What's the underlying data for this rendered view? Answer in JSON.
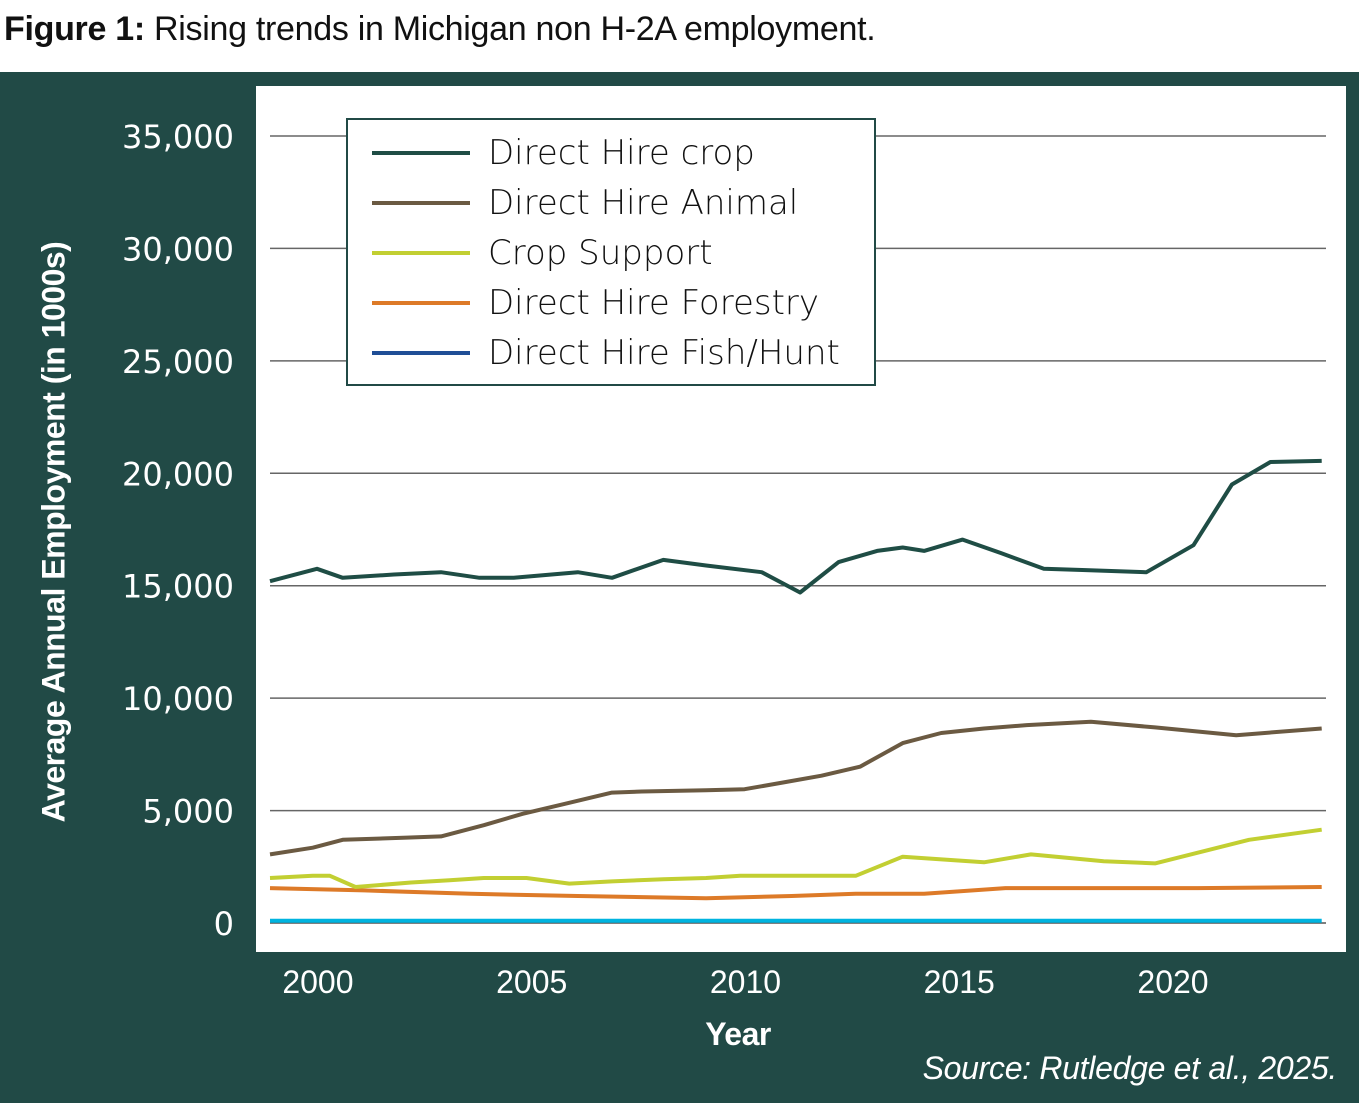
{
  "figure_title_bold": "Figure 1:",
  "figure_title_rest": " Rising trends in Michigan non H-2A employment.",
  "source": "Source: Rutledge et al., 2025.",
  "chart_data": {
    "type": "line",
    "title": "Rising trends in Michigan non H-2A employment.",
    "xlabel": "Year",
    "ylabel": "Average Annual Employment (in 1000s)",
    "xlim": [
      1999.3,
      2024
    ],
    "ylim": [
      0,
      35000
    ],
    "yticks": [
      0,
      5000,
      10000,
      15000,
      20000,
      25000,
      30000,
      35000
    ],
    "ytick_labels": [
      "0",
      "5,000",
      "10,000",
      "15,000",
      "20,000",
      "25,000",
      "30,000",
      "35,000"
    ],
    "xticks": [
      2000,
      2005,
      2010,
      2015,
      2020
    ],
    "xtick_labels": [
      "2000",
      "2005",
      "2010",
      "2015",
      "2020"
    ],
    "grid": "horizontal",
    "legend_position": "top-left",
    "series": [
      {
        "name": "Direct Hire crop",
        "color": "#1f4d45",
        "x": [
          1999.3,
          2000.4,
          2001,
          2002.2,
          2003.3,
          2004.2,
          2005,
          2006.5,
          2007.3,
          2008.5,
          2009.5,
          2010.8,
          2011.7,
          2012.6,
          2013.5,
          2014.1,
          2014.6,
          2015.5,
          2016.4,
          2017.4,
          2018.3,
          2019.8,
          2020.9,
          2021.8,
          2022.7,
          2023.9
        ],
        "values": [
          15200,
          15750,
          15350,
          15500,
          15600,
          15350,
          15350,
          15600,
          15350,
          16150,
          15900,
          15600,
          14700,
          16050,
          16550,
          16700,
          16550,
          17050,
          16450,
          15750,
          15700,
          15600,
          16800,
          19500,
          20500,
          20550
        ]
      },
      {
        "name": "Direct Hire Animal",
        "color": "#6b5a42",
        "x": [
          1999.3,
          2000.3,
          2001,
          2002.5,
          2003.3,
          2004.3,
          2005.2,
          2006.2,
          2007.3,
          2008,
          2009.5,
          2010.4,
          2011.3,
          2012.2,
          2013.1,
          2014.1,
          2015.0,
          2016.0,
          2017.0,
          2018.5,
          2020.0,
          2021.9,
          2023.9
        ],
        "values": [
          3050,
          3350,
          3700,
          3800,
          3850,
          4350,
          4850,
          5300,
          5800,
          5850,
          5900,
          5950,
          6250,
          6550,
          6950,
          8000,
          8450,
          8650,
          8800,
          8950,
          8700,
          8350,
          8650
        ]
      },
      {
        "name": "Crop Support",
        "color": "#c2cf32",
        "x": [
          1999.3,
          2000.3,
          2000.7,
          2001.3,
          2002.6,
          2003.5,
          2004.3,
          2005.3,
          2006.3,
          2007.3,
          2008.5,
          2009.5,
          2010.3,
          2011.3,
          2012.5,
          2013.0,
          2014.1,
          2016.0,
          2017.1,
          2018.8,
          2020.0,
          2022.2,
          2023.9
        ],
        "values": [
          2000,
          2100,
          2100,
          1600,
          1800,
          1900,
          2000,
          2000,
          1750,
          1850,
          1950,
          2000,
          2100,
          2100,
          2100,
          2100,
          2950,
          2700,
          3050,
          2750,
          2650,
          3700,
          4150
        ]
      },
      {
        "name": "Direct Hire Forestry",
        "color": "#dd7a28",
        "x": [
          1999.3,
          2001.5,
          2004,
          2006.5,
          2009.5,
          2011.5,
          2013.0,
          2014.6,
          2016.5,
          2018.5,
          2021.0,
          2023.9
        ],
        "values": [
          1550,
          1450,
          1300,
          1200,
          1100,
          1200,
          1300,
          1300,
          1550,
          1550,
          1550,
          1600
        ]
      },
      {
        "name": "Direct Hire Fish/Hunt",
        "color": "#1f4e96",
        "plot_color": "#00b4e0",
        "x": [
          1999.3,
          2023.9
        ],
        "values": [
          100,
          100
        ]
      }
    ]
  }
}
